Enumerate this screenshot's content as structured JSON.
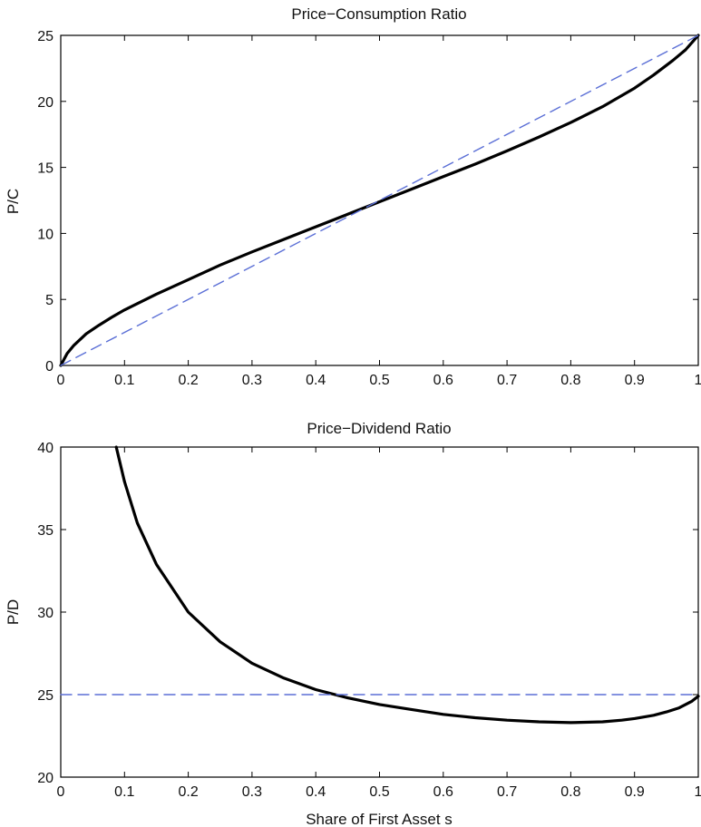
{
  "chart_data": [
    {
      "type": "line",
      "title": "Price−Consumption Ratio",
      "xlabel": "",
      "ylabel": "P/C",
      "xlim": [
        0,
        1
      ],
      "ylim": [
        0,
        25
      ],
      "xticks": [
        "0",
        "0.1",
        "0.2",
        "0.3",
        "0.4",
        "0.5",
        "0.6",
        "0.7",
        "0.8",
        "0.9",
        "1"
      ],
      "yticks": [
        "0",
        "5",
        "10",
        "15",
        "20",
        "25"
      ],
      "grid": false,
      "series": [
        {
          "style": "solid",
          "color": "#000000",
          "x": [
            0,
            0.01,
            0.02,
            0.04,
            0.06,
            0.08,
            0.1,
            0.15,
            0.2,
            0.25,
            0.3,
            0.35,
            0.4,
            0.45,
            0.5,
            0.55,
            0.6,
            0.65,
            0.7,
            0.75,
            0.8,
            0.85,
            0.9,
            0.93,
            0.96,
            0.98,
            1.0
          ],
          "y": [
            0,
            0.9,
            1.5,
            2.4,
            3.05,
            3.65,
            4.2,
            5.4,
            6.5,
            7.6,
            8.6,
            9.55,
            10.5,
            11.45,
            12.4,
            13.35,
            14.3,
            15.25,
            16.25,
            17.3,
            18.4,
            19.6,
            21.0,
            22.0,
            23.1,
            23.9,
            25.0
          ]
        },
        {
          "style": "dashed",
          "color": "#5b6fd6",
          "x": [
            0,
            1
          ],
          "y": [
            0,
            25
          ]
        }
      ]
    },
    {
      "type": "line",
      "title": "Price−Dividend Ratio",
      "xlabel": "Share of First Asset s",
      "ylabel": "P/D",
      "xlim": [
        0,
        1
      ],
      "ylim": [
        20,
        40
      ],
      "xticks": [
        "0",
        "0.1",
        "0.2",
        "0.3",
        "0.4",
        "0.5",
        "0.6",
        "0.7",
        "0.8",
        "0.9",
        "1"
      ],
      "yticks": [
        "20",
        "25",
        "30",
        "35",
        "40"
      ],
      "grid": false,
      "series": [
        {
          "style": "solid",
          "color": "#000000",
          "x": [
            0.087,
            0.1,
            0.12,
            0.15,
            0.2,
            0.25,
            0.3,
            0.35,
            0.4,
            0.45,
            0.5,
            0.55,
            0.6,
            0.65,
            0.7,
            0.75,
            0.8,
            0.85,
            0.88,
            0.9,
            0.93,
            0.95,
            0.97,
            0.99,
            1.0
          ],
          "y": [
            40.0,
            37.9,
            35.4,
            32.9,
            30.0,
            28.2,
            26.9,
            26.0,
            25.3,
            24.8,
            24.4,
            24.1,
            23.8,
            23.6,
            23.45,
            23.35,
            23.3,
            23.35,
            23.45,
            23.55,
            23.75,
            23.95,
            24.2,
            24.6,
            24.9
          ]
        },
        {
          "style": "dashed",
          "color": "#5b6fd6",
          "x": [
            0,
            1
          ],
          "y": [
            25,
            25
          ]
        }
      ]
    }
  ]
}
